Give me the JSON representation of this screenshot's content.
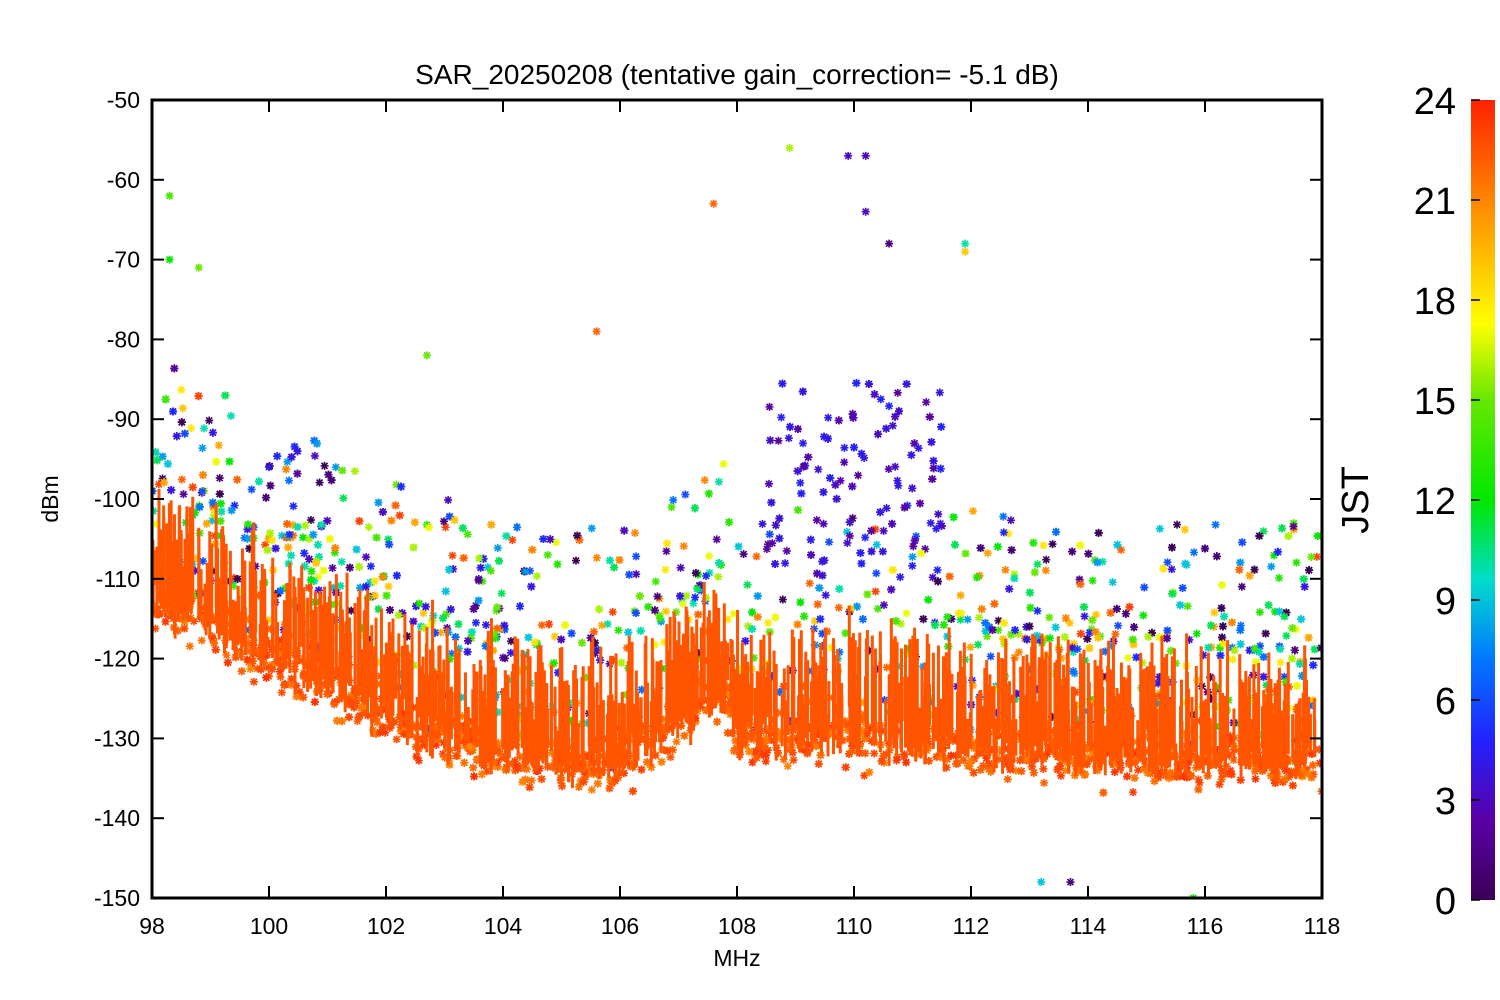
{
  "chart_data": {
    "type": "scatter",
    "title": "SAR_20250208 (tentative gain_correction= -5.1 dB)",
    "xlabel": "MHz",
    "ylabel": "dBm",
    "xlim": [
      98,
      118
    ],
    "ylim": [
      -150,
      -50
    ],
    "x_ticks": [
      "98",
      "100",
      "102",
      "104",
      "106",
      "108",
      "110",
      "112",
      "114",
      "116",
      "118"
    ],
    "y_ticks": [
      "-50",
      "-60",
      "-70",
      "-80",
      "-90",
      "-100",
      "-110",
      "-120",
      "-130",
      "-140",
      "-150"
    ],
    "grid": false,
    "colorbar": {
      "label": "JST",
      "range": [
        0,
        24
      ],
      "ticks": [
        "0",
        "3",
        "6",
        "9",
        "12",
        "15",
        "18",
        "21",
        "24"
      ],
      "colormap": "rainbow (purple to red)"
    },
    "series": [
      {
        "description": "noise floor band",
        "points": [
          [
            98,
            -112
          ],
          [
            99,
            -116
          ],
          [
            100,
            -120
          ],
          [
            101,
            -123
          ],
          [
            102,
            -127
          ],
          [
            103,
            -130
          ],
          [
            104,
            -132
          ],
          [
            105,
            -133
          ],
          [
            106,
            -133
          ],
          [
            107,
            -128
          ],
          [
            107.8,
            -124
          ],
          [
            108,
            -130
          ],
          [
            110,
            -130
          ],
          [
            112,
            -131
          ],
          [
            114,
            -132
          ],
          [
            116,
            -133
          ],
          [
            118,
            -133
          ]
        ]
      },
      {
        "description": "notable scattered detections",
        "points": [
          {
            "x": 98.3,
            "y": -62,
            "jst": 14
          },
          {
            "x": 98.3,
            "y": -70,
            "jst": 12
          },
          {
            "x": 98.8,
            "y": -71,
            "jst": 15
          },
          {
            "x": 100.0,
            "y": -96,
            "jst": 4
          },
          {
            "x": 102.7,
            "y": -82,
            "jst": 15
          },
          {
            "x": 105.6,
            "y": -79,
            "jst": 22
          },
          {
            "x": 107.6,
            "y": -63,
            "jst": 22
          },
          {
            "x": 108.9,
            "y": -56,
            "jst": 16
          },
          {
            "x": 109.9,
            "y": -57,
            "jst": 3
          },
          {
            "x": 110.2,
            "y": -57,
            "jst": 3
          },
          {
            "x": 110.2,
            "y": -64,
            "jst": 3
          },
          {
            "x": 110.6,
            "y": -68,
            "jst": 1
          },
          {
            "x": 111.9,
            "y": -68,
            "jst": 10
          },
          {
            "x": 111.9,
            "y": -69,
            "jst": 19
          },
          {
            "x": 113.2,
            "y": -148,
            "jst": 9
          },
          {
            "x": 113.7,
            "y": -148,
            "jst": 1
          },
          {
            "x": 115.8,
            "y": -150,
            "jst": 12
          }
        ]
      }
    ]
  }
}
